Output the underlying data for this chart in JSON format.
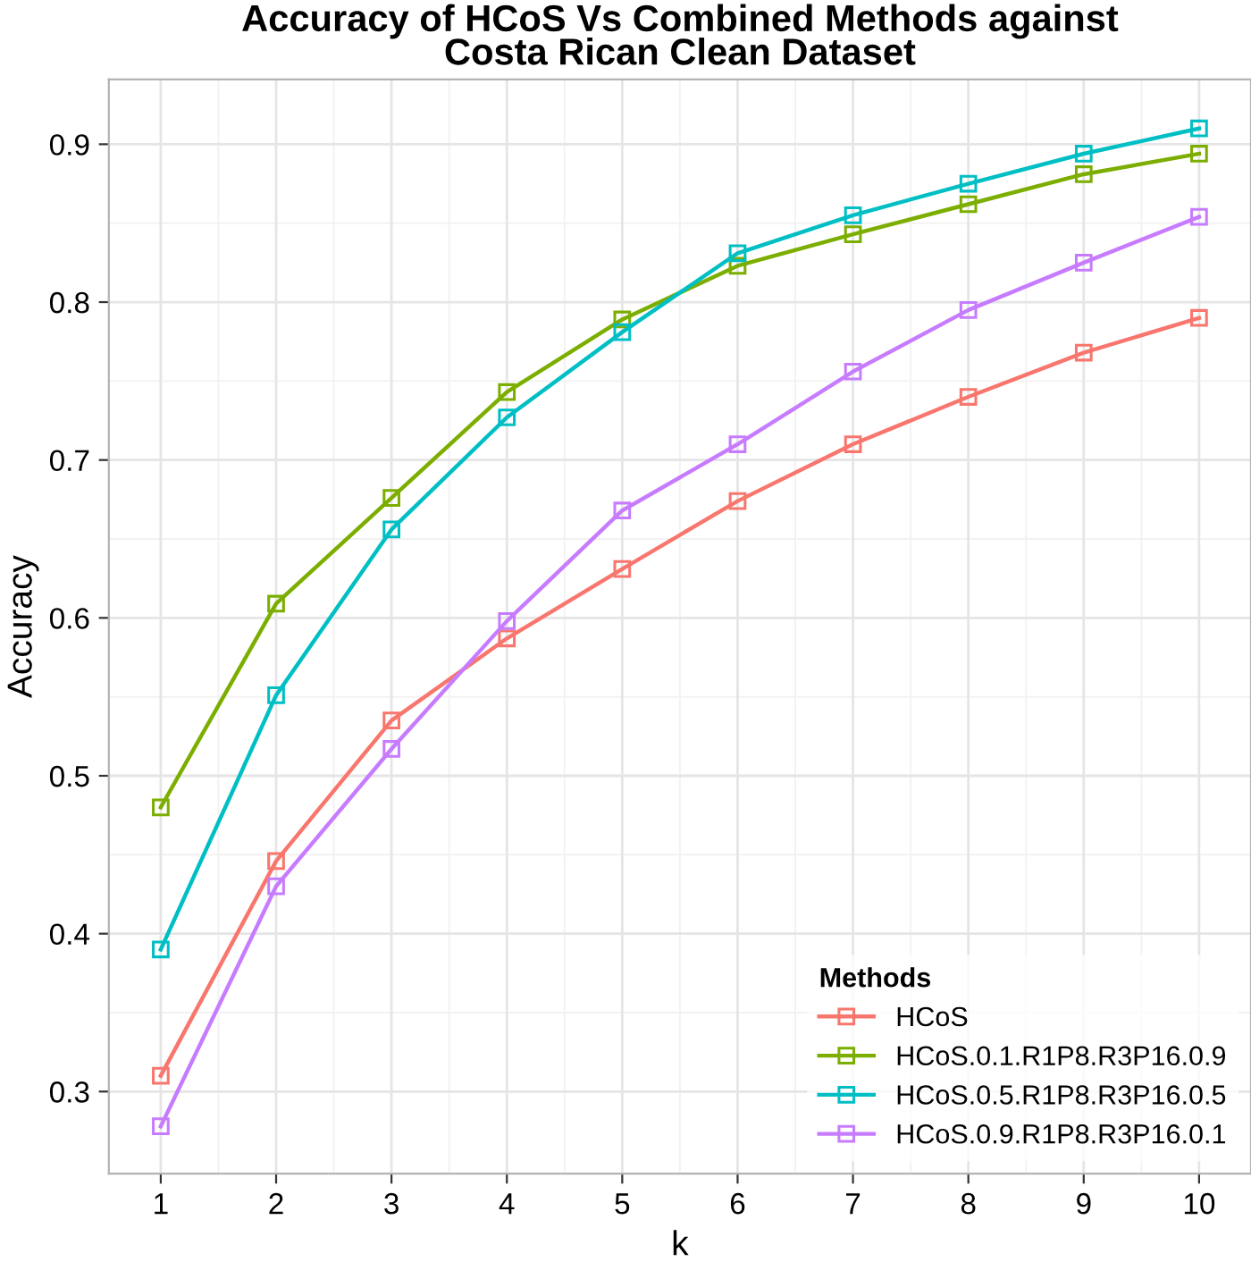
{
  "chart_data": {
    "type": "line",
    "title": "Accuracy of HCoS Vs Combined Methods against\nCosta Rican Clean Dataset",
    "xlabel": "k",
    "ylabel": "Accuracy",
    "legend_title": "Methods",
    "x": [
      1,
      2,
      3,
      4,
      5,
      6,
      7,
      8,
      9,
      10
    ],
    "series": [
      {
        "name": "HCoS",
        "color": "#f8766d",
        "values": [
          0.31,
          0.446,
          0.535,
          0.587,
          0.631,
          0.674,
          0.71,
          0.74,
          0.768,
          0.79
        ]
      },
      {
        "name": "HCoS.0.1.R1P8.R3P16.0.9",
        "color": "#7cae00",
        "values": [
          0.48,
          0.609,
          0.676,
          0.743,
          0.789,
          0.823,
          0.843,
          0.862,
          0.881,
          0.894
        ]
      },
      {
        "name": "HCoS.0.5.R1P8.R3P16.0.5",
        "color": "#00bfc4",
        "values": [
          0.39,
          0.551,
          0.656,
          0.727,
          0.781,
          0.831,
          0.855,
          0.875,
          0.894,
          0.91
        ]
      },
      {
        "name": "HCoS.0.9.R1P8.R3P16.0.1",
        "color": "#c77cff",
        "values": [
          0.278,
          0.43,
          0.517,
          0.598,
          0.668,
          0.71,
          0.756,
          0.795,
          0.825,
          0.854
        ]
      }
    ],
    "xlim": [
      0.55,
      10.45
    ],
    "xticks": [
      1,
      2,
      3,
      4,
      5,
      6,
      7,
      8,
      9,
      10
    ],
    "ylim": [
      0.248,
      0.941
    ],
    "yticks": [
      0.3,
      0.4,
      0.5,
      0.6,
      0.7,
      0.8,
      0.9
    ],
    "grid": true,
    "legend": "bottom right",
    "marker": "square",
    "line_style": "solid"
  }
}
